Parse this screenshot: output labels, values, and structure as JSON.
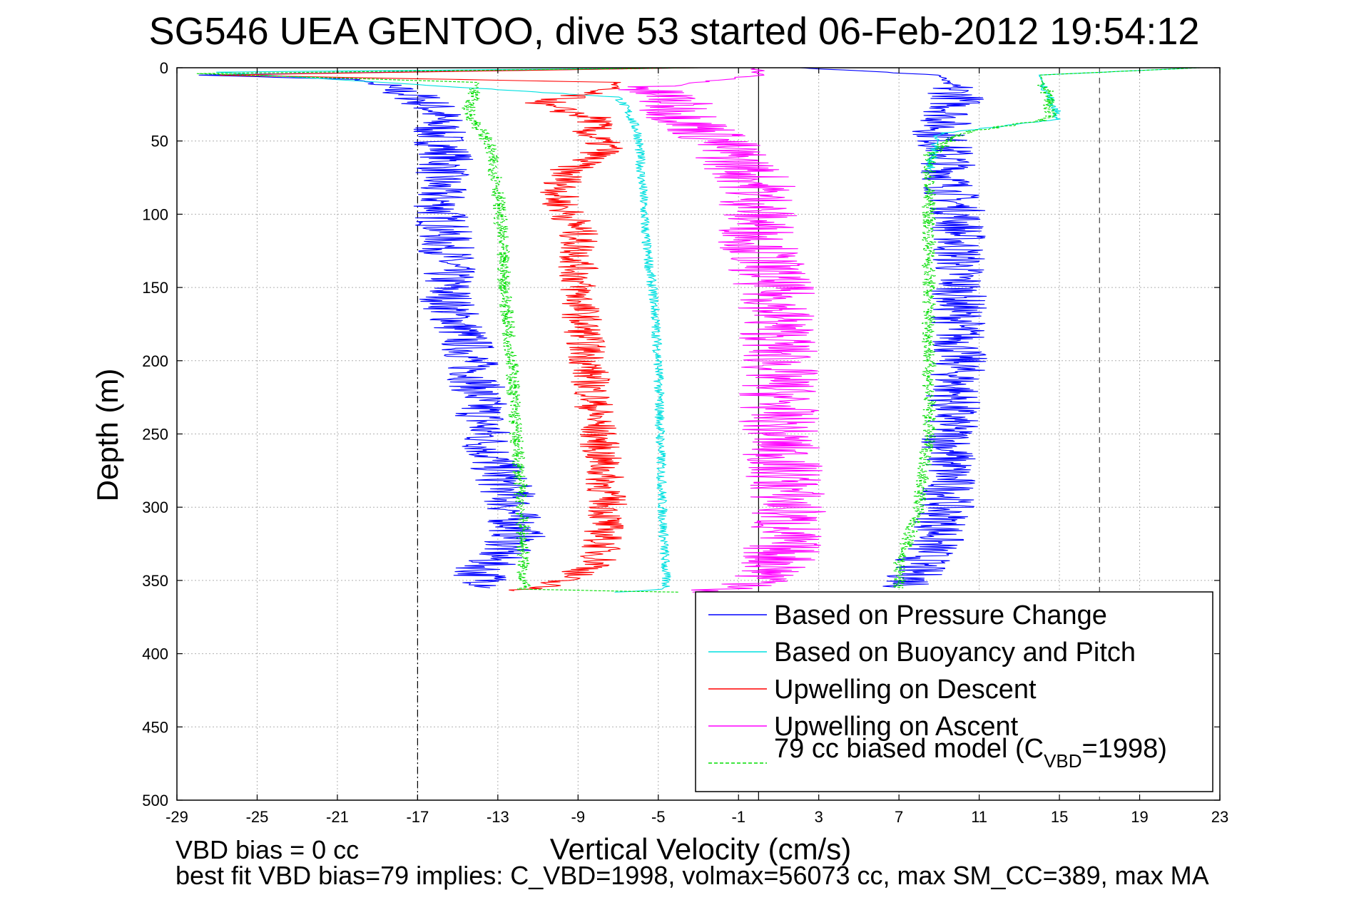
{
  "chart_data": {
    "type": "line",
    "title": "SG546 UEA GENTOO, dive 53 started 06-Feb-2012 19:54:12",
    "xlabel": "Vertical Velocity (cm/s)",
    "ylabel": "Depth (m)",
    "xlim": [
      -29,
      23
    ],
    "ylim": [
      0,
      500
    ],
    "y_reversed": true,
    "grid": true,
    "x_ticks": [
      "-29",
      "-25",
      "-21",
      "-17",
      "-13",
      "-9",
      "-5",
      "-1",
      "3",
      "7",
      "11",
      "15",
      "19",
      "23"
    ],
    "y_ticks": [
      "0",
      "50",
      "100",
      "150",
      "200",
      "250",
      "300",
      "350",
      "400",
      "450",
      "500"
    ],
    "reference_lines": {
      "dashdot_x": -17,
      "dashed_x": 17,
      "solid_x": 0
    },
    "legend_position": "bottom-right",
    "series": [
      {
        "name": "Based on Pressure Change",
        "color": "#0000ff",
        "noise": 1.4,
        "segments": [
          {
            "depth": [
              0,
              5,
              8,
              20,
              30,
              45,
              60,
              80,
              100,
              130,
              160,
              190,
              220,
              260,
              290,
              320,
              345,
              355
            ],
            "value": [
              -3,
              -28,
              -20,
              -17,
              -16,
              -16,
              -15.5,
              -16,
              -15.8,
              -15.5,
              -15.5,
              -14.5,
              -14,
              -13.5,
              -12.5,
              -12,
              -14,
              -13
            ]
          },
          {
            "depth": [
              0,
              5,
              20,
              45,
              60,
              80,
              100,
              150,
              200,
              250,
              290,
              320,
              340,
              355
            ],
            "value": [
              2,
              9,
              10,
              9,
              9.5,
              9.5,
              10,
              10,
              10,
              9.5,
              9.5,
              9,
              8,
              7.5
            ]
          }
        ]
      },
      {
        "name": "Based on Buoyancy and Pitch",
        "color": "#00e0e0",
        "noise": 0.25,
        "segments": [
          {
            "depth": [
              0,
              3,
              20,
              30,
              45,
              80,
              120,
              160,
              200,
              250,
              300,
              356,
              358
            ],
            "value": [
              -3,
              -27,
              -7,
              -6.5,
              -6,
              -5.8,
              -5.6,
              -5.2,
              -5,
              -4.9,
              -4.8,
              -4.6,
              -7
            ]
          },
          {
            "depth": [
              0,
              5,
              20,
              35,
              40,
              45,
              70
            ],
            "value": [
              22,
              14,
              14.5,
              15,
              12,
              9,
              8.5
            ]
          }
        ]
      },
      {
        "name": "Upwelling on Descent",
        "color": "#ff0000",
        "noise": 1.0,
        "segments": [
          {
            "depth": [
              0,
              5,
              10,
              15,
              25,
              35,
              45,
              55,
              70,
              90,
              110,
              150,
              200,
              250,
              300,
              340,
              355,
              357
            ],
            "value": [
              -3,
              -27,
              -7,
              -8,
              -11,
              -8,
              -8.5,
              -7.5,
              -9.5,
              -10,
              -9,
              -9,
              -8.5,
              -8,
              -7.5,
              -8,
              -11,
              -12
            ]
          }
        ]
      },
      {
        "name": "Upwelling on Ascent",
        "color": "#ff00ff",
        "noise": 2.0,
        "segments": [
          {
            "depth": [
              0,
              5,
              15,
              20,
              30,
              40,
              50,
              80,
              120,
              160,
              200,
              250,
              300,
              340,
              355,
              358
            ],
            "value": [
              0,
              0,
              -6,
              -4.5,
              -4,
              -3,
              -2,
              0,
              0,
              1,
              1,
              1,
              1.5,
              1,
              0,
              -4
            ]
          }
        ]
      },
      {
        "name": "79 cc biased model (C_VBD=1998)",
        "color": "#00dd00",
        "dashed": true,
        "noise": 0.35,
        "segments": [
          {
            "depth": [
              0,
              4,
              10,
              30,
              50,
              80,
              120,
              160,
              200,
              250,
              300,
              356,
              358
            ],
            "value": [
              -3,
              -28,
              -14,
              -14.5,
              -13.5,
              -13,
              -12.8,
              -12.6,
              -12.3,
              -12.1,
              -11.8,
              -11.7,
              -4
            ]
          },
          {
            "depth": [
              0,
              5,
              20,
              35,
              45,
              60,
              80,
              120,
              160,
              200,
              250,
              300,
              340,
              355
            ],
            "value": [
              22,
              14,
              14.5,
              14.5,
              10,
              8.5,
              8.5,
              8.5,
              8.5,
              8.5,
              8.5,
              8,
              7,
              7
            ]
          }
        ]
      }
    ],
    "legend_entries": [
      {
        "text": "Based on Pressure Change",
        "color": "#0000ff",
        "dashed": false
      },
      {
        "text": "Based on Buoyancy and Pitch",
        "color": "#00e0e0",
        "dashed": false
      },
      {
        "text": "Upwelling on Descent",
        "color": "#ff0000",
        "dashed": false
      },
      {
        "text": "Upwelling on Ascent",
        "color": "#ff00ff",
        "dashed": false
      },
      {
        "text": "79 cc biased model (C",
        "sub": "VBD",
        "suffix": "=1998)",
        "color": "#00dd00",
        "dashed": true
      }
    ]
  },
  "footer": {
    "line1": "VBD bias = 0 cc",
    "line2": "best fit VBD bias=79 implies: C_VBD=1998, volmax=56073 cc, max SM_CC=389, max MA"
  }
}
